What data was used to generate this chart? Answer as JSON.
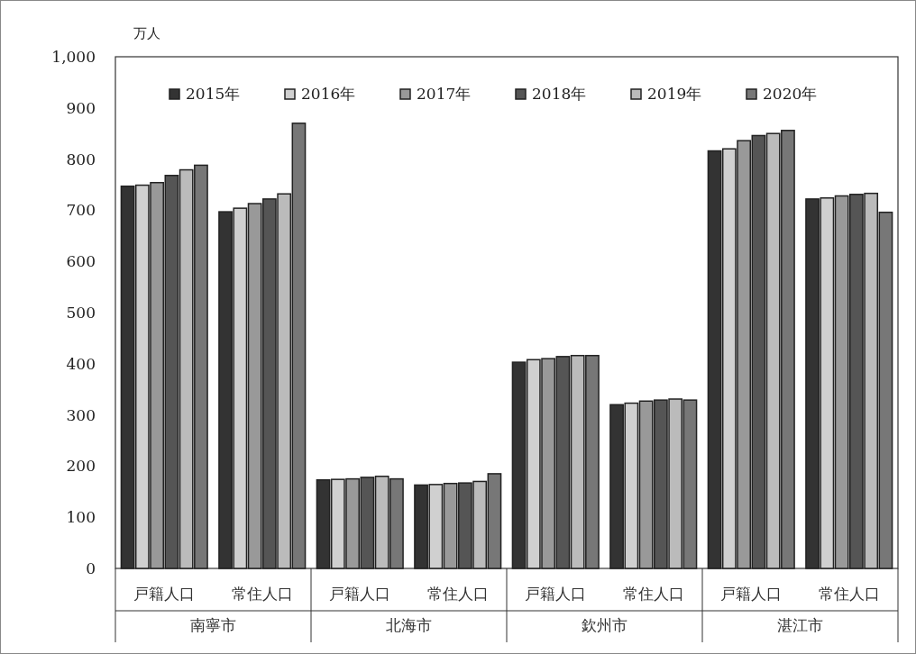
{
  "chart_data": {
    "type": "bar",
    "ylabel": "万人",
    "categories": [
      "戸籍人口",
      "常住人口",
      "戸籍人口",
      "常住人口",
      "戸籍人口",
      "常住人口",
      "戸籍人口",
      "常住人口"
    ],
    "annotations": [
      "南寧市",
      "北海市",
      "欽州市",
      "湛江市"
    ],
    "series": [
      {
        "name": "2015年",
        "color": "#333333",
        "values": [
          747,
          697,
          173,
          163,
          403,
          320,
          816,
          722
        ]
      },
      {
        "name": "2016年",
        "color": "#d0d0d0",
        "values": [
          749,
          704,
          174,
          164,
          408,
          323,
          820,
          724
        ]
      },
      {
        "name": "2017年",
        "color": "#999999",
        "values": [
          754,
          713,
          175,
          166,
          410,
          327,
          836,
          728
        ]
      },
      {
        "name": "2018年",
        "color": "#555555",
        "values": [
          768,
          722,
          178,
          167,
          414,
          329,
          846,
          731
        ]
      },
      {
        "name": "2019年",
        "color": "#bbbbbb",
        "values": [
          779,
          732,
          180,
          170,
          416,
          331,
          850,
          733
        ]
      },
      {
        "name": "2020年",
        "color": "#777777",
        "values": [
          788,
          870,
          175,
          185,
          416,
          329,
          856,
          696
        ]
      }
    ],
    "ylim": [
      0,
      1000
    ],
    "yticks": [
      0,
      100,
      200,
      300,
      400,
      500,
      600,
      700,
      800,
      900,
      {
        "value": 1000,
        "label": "1,000"
      }
    ],
    "legend": "top",
    "grid": false
  }
}
